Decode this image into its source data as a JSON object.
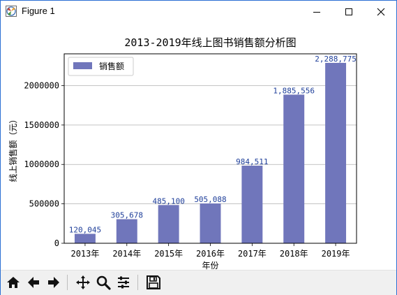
{
  "window": {
    "title": "Figure 1"
  },
  "toolbar": {
    "buttons": [
      "home-icon",
      "back-icon",
      "forward-icon",
      "pan-icon",
      "zoom-icon",
      "configure-icon",
      "save-icon"
    ]
  },
  "colors": {
    "bar": "#7076bb",
    "label": "#1f3f9a"
  },
  "chart_data": {
    "type": "bar",
    "title": "2013-2019年线上图书销售额分析图",
    "xlabel": "年份",
    "ylabel": "线上销售额（元）",
    "categories": [
      "2013年",
      "2014年",
      "2015年",
      "2016年",
      "2017年",
      "2018年",
      "2019年"
    ],
    "series": [
      {
        "name": "销售额",
        "values": [
          120045,
          305678,
          485100,
          505088,
          984511,
          1885556,
          2288775
        ]
      }
    ],
    "data_labels": [
      "120,045",
      "305,678",
      "485,100",
      "505,088",
      "984,511",
      "1,885,556",
      "2,288,775"
    ],
    "yticks": [
      0,
      500000,
      1000000,
      1500000,
      2000000
    ],
    "ytick_labels": [
      "0",
      "500000",
      "1000000",
      "1500000",
      "2000000"
    ],
    "ylim": [
      0,
      2403214
    ],
    "grid": "horizontal",
    "legend": "top-left"
  }
}
